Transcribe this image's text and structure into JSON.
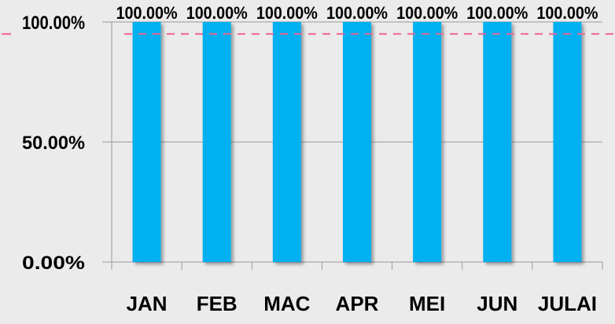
{
  "chart_data": {
    "type": "bar",
    "categories": [
      "JAN",
      "FEB",
      "MAC",
      "APR",
      "MEI",
      "JUN",
      "JULAI"
    ],
    "values": [
      100,
      100,
      100,
      100,
      100,
      100,
      100
    ],
    "data_labels": [
      "100.00%",
      "100.00%",
      "100.00%",
      "100.00%",
      "100.00%",
      "100.00%",
      "100.00%"
    ],
    "ylim": [
      0,
      100
    ],
    "yticks": [
      0,
      50,
      100
    ],
    "ytick_labels": [
      "0.00%",
      "50.00%",
      "100.00%"
    ],
    "target_line": {
      "value": 95
    },
    "title": "",
    "xlabel": "",
    "ylabel": "",
    "grid": true,
    "legend": false,
    "colors": {
      "bar": "#00b0f0",
      "target_line": "#f06292",
      "grid": "#9a9a9a",
      "background": "#ebebeb"
    }
  }
}
